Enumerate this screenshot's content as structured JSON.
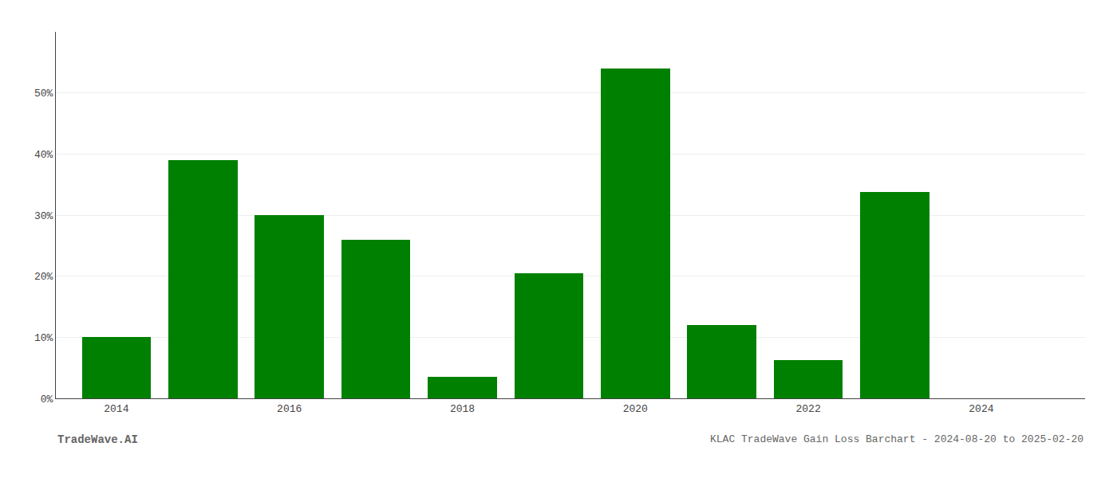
{
  "chart_data": {
    "type": "bar",
    "title": "KLAC TradeWave Gain Loss Barchart - 2024-08-20 to 2025-02-20",
    "annotations": [
      {
        "text": "TradeWave.AI"
      }
    ],
    "x": [
      2014,
      2015,
      2016,
      2017,
      2018,
      2019,
      2020,
      2021,
      2022,
      2023,
      2024
    ],
    "values": [
      0.1,
      0.39,
      0.3,
      0.26,
      0.035,
      0.205,
      0.54,
      0.12,
      0.062,
      0.338,
      null
    ],
    "color": "#008000",
    "xlim": [
      2013.3,
      2025.2
    ],
    "xticks": [
      2014,
      2016,
      2018,
      2020,
      2022,
      2024
    ],
    "ylim": [
      0,
      0.6
    ],
    "yticks": [
      {
        "value": 0.0,
        "label": "0%"
      },
      {
        "value": 0.1,
        "label": "10%"
      },
      {
        "value": 0.2,
        "label": "20%"
      },
      {
        "value": 0.3,
        "label": "30%"
      },
      {
        "value": 0.4,
        "label": "40%"
      },
      {
        "value": 0.5,
        "label": "50%"
      }
    ],
    "grid": "y"
  }
}
